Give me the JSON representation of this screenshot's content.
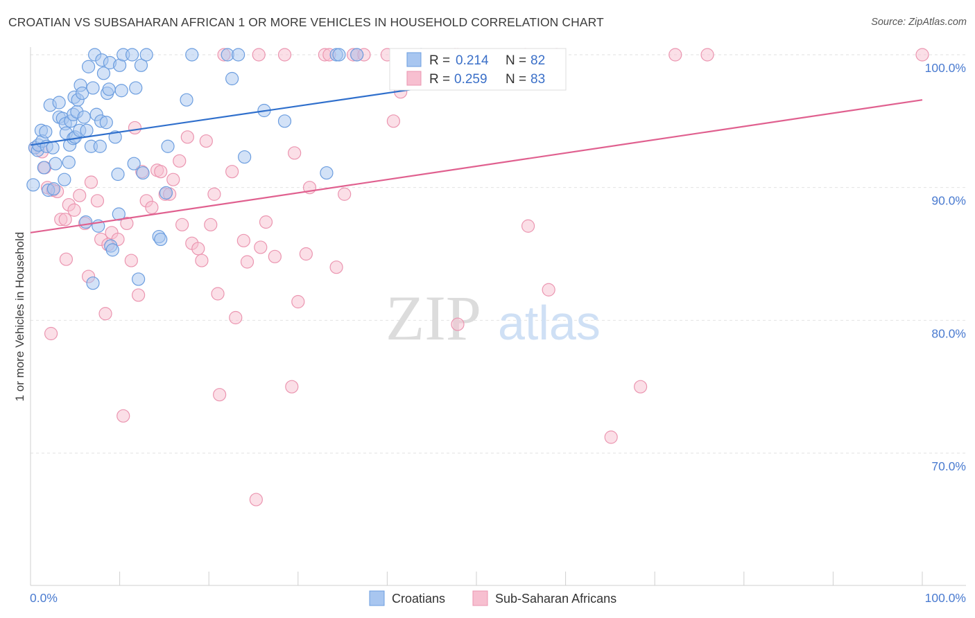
{
  "header": {
    "title": "CROATIAN VS SUBSAHARAN AFRICAN 1 OR MORE VEHICLES IN HOUSEHOLD CORRELATION CHART",
    "source": "Source: ZipAtlas.com"
  },
  "watermark": {
    "zip": "ZIP",
    "atlas": "atlas"
  },
  "colors": {
    "series_blue_fill": "#a8c6f0",
    "series_blue_stroke": "#6b9ddf",
    "series_blue_line": "#2f6fcc",
    "series_pink_fill": "#f7bfd0",
    "series_pink_stroke": "#eb95b0",
    "series_pink_line": "#e0608f",
    "tick_text": "#4a7bd0",
    "grid": "#e2e2e2"
  },
  "stats_box": {
    "rows": [
      {
        "r_label": "R =",
        "r_value": "0.214",
        "n_label": "N =",
        "n_value": "82"
      },
      {
        "r_label": "R =",
        "r_value": "0.259",
        "n_label": "N =",
        "n_value": "83"
      }
    ]
  },
  "chart_data": {
    "type": "scatter",
    "title": "CROATIAN VS SUBSAHARAN AFRICAN 1 OR MORE VEHICLES IN HOUSEHOLD CORRELATION CHART",
    "xlabel": "",
    "ylabel": "1 or more Vehicles in Household",
    "xlim": [
      0,
      100
    ],
    "ylim": [
      60,
      101.5
    ],
    "x_tick_labels": [
      "0.0%",
      "100.0%"
    ],
    "y_ticks": [
      70,
      80,
      90,
      100
    ],
    "y_tick_labels": [
      "70.0%",
      "80.0%",
      "90.0%",
      "100.0%"
    ],
    "grid": true,
    "legend_position": "bottom-center",
    "series": [
      {
        "name": "Croatians",
        "r": 0.214,
        "n": 82,
        "trend": {
          "x": [
            0,
            47
          ],
          "y": [
            93.2,
            97.8
          ]
        },
        "points": [
          [
            0.3,
            90.2
          ],
          [
            0.5,
            93.0
          ],
          [
            0.8,
            92.8
          ],
          [
            0.9,
            93.2
          ],
          [
            1.2,
            94.3
          ],
          [
            1.3,
            93.5
          ],
          [
            1.5,
            91.5
          ],
          [
            1.7,
            94.2
          ],
          [
            1.8,
            93.1
          ],
          [
            2.0,
            89.8
          ],
          [
            2.2,
            96.2
          ],
          [
            2.5,
            93.0
          ],
          [
            2.6,
            89.9
          ],
          [
            2.8,
            91.8
          ],
          [
            3.2,
            96.4
          ],
          [
            3.2,
            95.3
          ],
          [
            3.6,
            95.2
          ],
          [
            3.8,
            90.6
          ],
          [
            3.9,
            94.8
          ],
          [
            4.0,
            94.1
          ],
          [
            4.3,
            91.9
          ],
          [
            4.4,
            93.2
          ],
          [
            4.5,
            95.0
          ],
          [
            4.8,
            95.5
          ],
          [
            4.8,
            93.7
          ],
          [
            4.9,
            96.8
          ],
          [
            5.0,
            93.8
          ],
          [
            5.2,
            95.7
          ],
          [
            5.3,
            96.6
          ],
          [
            5.5,
            94.3
          ],
          [
            5.6,
            97.7
          ],
          [
            5.8,
            97.1
          ],
          [
            6.0,
            95.3
          ],
          [
            6.2,
            87.4
          ],
          [
            6.3,
            94.3
          ],
          [
            6.5,
            99.1
          ],
          [
            6.8,
            93.1
          ],
          [
            7.0,
            97.5
          ],
          [
            7.0,
            82.8
          ],
          [
            7.2,
            100.0
          ],
          [
            7.4,
            95.5
          ],
          [
            7.6,
            87.1
          ],
          [
            7.8,
            93.1
          ],
          [
            7.9,
            95.0
          ],
          [
            8.0,
            99.6
          ],
          [
            8.2,
            98.6
          ],
          [
            8.5,
            94.9
          ],
          [
            8.6,
            97.1
          ],
          [
            8.8,
            97.4
          ],
          [
            8.9,
            99.4
          ],
          [
            9.0,
            85.6
          ],
          [
            9.2,
            85.3
          ],
          [
            9.5,
            93.8
          ],
          [
            9.8,
            91.0
          ],
          [
            9.9,
            88.0
          ],
          [
            10.0,
            99.2
          ],
          [
            10.2,
            97.3
          ],
          [
            10.4,
            100.0
          ],
          [
            11.4,
            100.0
          ],
          [
            11.6,
            91.8
          ],
          [
            11.8,
            97.5
          ],
          [
            12.1,
            83.1
          ],
          [
            12.4,
            99.2
          ],
          [
            12.6,
            91.1
          ],
          [
            13.0,
            100.0
          ],
          [
            14.4,
            86.3
          ],
          [
            14.6,
            86.1
          ],
          [
            15.2,
            89.6
          ],
          [
            15.4,
            93.1
          ],
          [
            17.5,
            96.6
          ],
          [
            18.1,
            100.0
          ],
          [
            22.1,
            100.0
          ],
          [
            22.6,
            98.2
          ],
          [
            23.3,
            100.0
          ],
          [
            24.0,
            92.3
          ],
          [
            26.2,
            95.8
          ],
          [
            28.5,
            95.0
          ],
          [
            33.2,
            91.1
          ],
          [
            34.3,
            100.0
          ],
          [
            34.6,
            100.0
          ],
          [
            36.6,
            100.0
          ],
          [
            43.8,
            100.0
          ]
        ]
      },
      {
        "name": "Sub-Saharan Africans",
        "r": 0.259,
        "n": 83,
        "trend": {
          "x": [
            0,
            100
          ],
          "y": [
            86.6,
            96.6
          ]
        },
        "points": [
          [
            0.5,
            93.0
          ],
          [
            1.3,
            92.7
          ],
          [
            1.6,
            91.5
          ],
          [
            1.9,
            90.0
          ],
          [
            2.3,
            79.0
          ],
          [
            2.5,
            89.8
          ],
          [
            3.0,
            89.7
          ],
          [
            3.4,
            87.6
          ],
          [
            3.9,
            87.6
          ],
          [
            4.0,
            84.6
          ],
          [
            4.3,
            88.7
          ],
          [
            4.9,
            88.3
          ],
          [
            5.5,
            89.4
          ],
          [
            6.1,
            87.3
          ],
          [
            6.5,
            83.3
          ],
          [
            6.8,
            90.4
          ],
          [
            7.5,
            89.0
          ],
          [
            7.9,
            86.1
          ],
          [
            8.4,
            80.5
          ],
          [
            8.7,
            85.7
          ],
          [
            9.1,
            86.6
          ],
          [
            9.8,
            86.1
          ],
          [
            10.4,
            72.8
          ],
          [
            10.8,
            87.3
          ],
          [
            11.3,
            84.5
          ],
          [
            11.7,
            94.5
          ],
          [
            12.1,
            81.9
          ],
          [
            12.5,
            91.2
          ],
          [
            13.0,
            89.0
          ],
          [
            13.6,
            88.5
          ],
          [
            14.2,
            91.3
          ],
          [
            14.6,
            91.2
          ],
          [
            15.1,
            89.5
          ],
          [
            15.6,
            89.5
          ],
          [
            16.0,
            90.6
          ],
          [
            16.7,
            92.0
          ],
          [
            17.0,
            87.2
          ],
          [
            17.6,
            93.8
          ],
          [
            18.1,
            85.8
          ],
          [
            18.8,
            85.4
          ],
          [
            19.2,
            84.5
          ],
          [
            19.7,
            93.5
          ],
          [
            20.2,
            87.2
          ],
          [
            20.6,
            89.5
          ],
          [
            21.0,
            82.0
          ],
          [
            21.2,
            74.4
          ],
          [
            21.7,
            100.0
          ],
          [
            22.6,
            91.2
          ],
          [
            23.0,
            80.2
          ],
          [
            23.9,
            86.0
          ],
          [
            24.3,
            84.4
          ],
          [
            25.3,
            66.5
          ],
          [
            25.6,
            100.0
          ],
          [
            25.8,
            85.5
          ],
          [
            26.4,
            87.4
          ],
          [
            27.4,
            84.8
          ],
          [
            28.5,
            100.0
          ],
          [
            29.3,
            75.0
          ],
          [
            29.6,
            92.6
          ],
          [
            30.0,
            81.4
          ],
          [
            30.9,
            85.0
          ],
          [
            31.3,
            90.0
          ],
          [
            33.0,
            100.0
          ],
          [
            33.5,
            100.0
          ],
          [
            34.3,
            84.0
          ],
          [
            35.2,
            89.5
          ],
          [
            36.2,
            100.0
          ],
          [
            36.6,
            100.0
          ],
          [
            37.4,
            100.0
          ],
          [
            40.0,
            100.0
          ],
          [
            40.7,
            95.0
          ],
          [
            41.5,
            97.2
          ],
          [
            47.6,
            100.0
          ],
          [
            47.9,
            100.0
          ],
          [
            47.9,
            79.7
          ],
          [
            55.5,
            100.0
          ],
          [
            55.8,
            87.1
          ],
          [
            58.1,
            82.3
          ],
          [
            59.0,
            100.0
          ],
          [
            65.1,
            71.2
          ],
          [
            68.4,
            75.0
          ],
          [
            72.3,
            100.0
          ],
          [
            75.9,
            100.0
          ],
          [
            100.0,
            100.0
          ]
        ]
      }
    ]
  }
}
